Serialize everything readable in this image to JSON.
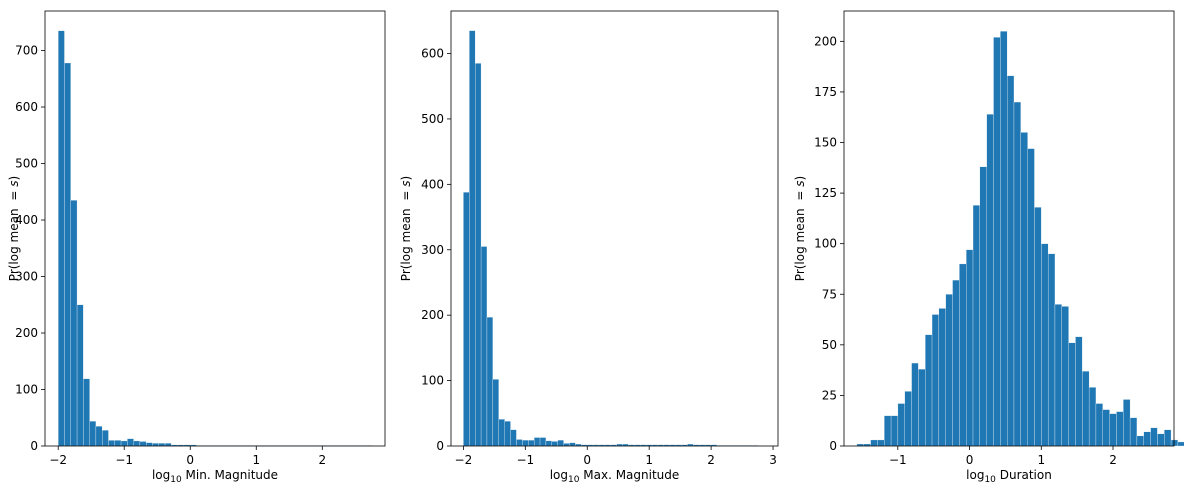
{
  "chart_data": [
    {
      "type": "bar",
      "xlabel_base": "log",
      "xlabel_sub": "10",
      "xlabel_rest": " Min. Magnitude",
      "ylabel_text": "Pr(log mean ",
      "ylabel_math": "= s",
      "ylabel_close": ")",
      "xlim": [
        -2.2,
        2.95
      ],
      "ylim": [
        0,
        770
      ],
      "xticks": [
        -2,
        -1,
        0,
        1,
        2
      ],
      "xtick_labels": [
        "−2",
        "−1",
        "0",
        "1",
        "2"
      ],
      "yticks": [
        0,
        100,
        200,
        300,
        400,
        500,
        600,
        700
      ],
      "ytick_labels": [
        "0",
        "100",
        "200",
        "300",
        "400",
        "500",
        "600",
        "700"
      ],
      "bar_color": "#1f77b4",
      "bin_start": -2.0,
      "bin_width": 0.0952,
      "values": [
        735,
        678,
        435,
        250,
        119,
        44,
        35,
        28,
        10,
        10,
        9,
        13,
        9,
        8,
        6,
        5,
        5,
        5,
        2,
        2,
        2,
        2,
        1,
        1,
        1,
        1,
        1,
        1,
        1,
        1,
        1,
        1,
        1,
        1,
        1,
        1,
        1,
        1,
        1,
        1,
        1,
        1,
        1,
        1,
        1,
        1,
        1,
        1,
        1,
        1
      ]
    },
    {
      "type": "bar",
      "xlabel_base": "log",
      "xlabel_sub": "10",
      "xlabel_rest": " Max. Magnitude",
      "ylabel_text": "Pr(log mean ",
      "ylabel_math": "= s",
      "ylabel_close": ")",
      "xlim": [
        -2.2,
        3.08
      ],
      "ylim": [
        0,
        665
      ],
      "xticks": [
        -2,
        -1,
        0,
        1,
        2,
        3
      ],
      "xtick_labels": [
        "−2",
        "−1",
        "0",
        "1",
        "2",
        "3"
      ],
      "yticks": [
        0,
        100,
        200,
        300,
        400,
        500,
        600
      ],
      "ytick_labels": [
        "0",
        "100",
        "200",
        "300",
        "400",
        "500",
        "600"
      ],
      "bar_color": "#1f77b4",
      "bin_start": -2.0,
      "bin_width": 0.0952,
      "values": [
        388,
        635,
        585,
        305,
        197,
        102,
        41,
        38,
        25,
        10,
        9,
        9,
        13,
        13,
        8,
        7,
        9,
        4,
        5,
        3,
        2,
        2,
        2,
        2,
        2,
        2,
        3,
        3,
        2,
        2,
        2,
        2,
        2,
        2,
        2,
        2,
        2,
        2,
        3,
        2,
        2,
        2,
        2,
        1,
        1,
        1,
        1,
        1,
        1,
        1
      ]
    },
    {
      "type": "bar",
      "xlabel_base": "log",
      "xlabel_sub": "10",
      "xlabel_rest": " Duration",
      "ylabel_text": "Pr(log mean ",
      "ylabel_math": "= s",
      "ylabel_close": ")",
      "xlim": [
        -1.75,
        2.85
      ],
      "ylim": [
        0,
        215
      ],
      "xticks": [
        -1,
        0,
        1,
        2
      ],
      "xtick_labels": [
        "−1",
        "0",
        "1",
        "2"
      ],
      "yticks": [
        0,
        25,
        50,
        75,
        100,
        125,
        150,
        175,
        200
      ],
      "ytick_labels": [
        "0",
        "25",
        "50",
        "75",
        "100",
        "125",
        "150",
        "175",
        "200"
      ],
      "bar_color": "#1f77b4",
      "bin_start": -1.57,
      "bin_width": 0.0952,
      "values": [
        1,
        1,
        3,
        3,
        15,
        15,
        21,
        27,
        41,
        38,
        55,
        65,
        68,
        75,
        82,
        90,
        97,
        119,
        138,
        164,
        202,
        205,
        183,
        170,
        155,
        147,
        118,
        100,
        95,
        70,
        69,
        51,
        54,
        37,
        29,
        21,
        18,
        16,
        17,
        23,
        14,
        5,
        7,
        9,
        6,
        8,
        3,
        2,
        2,
        2,
        1,
        2,
        1
      ]
    }
  ]
}
